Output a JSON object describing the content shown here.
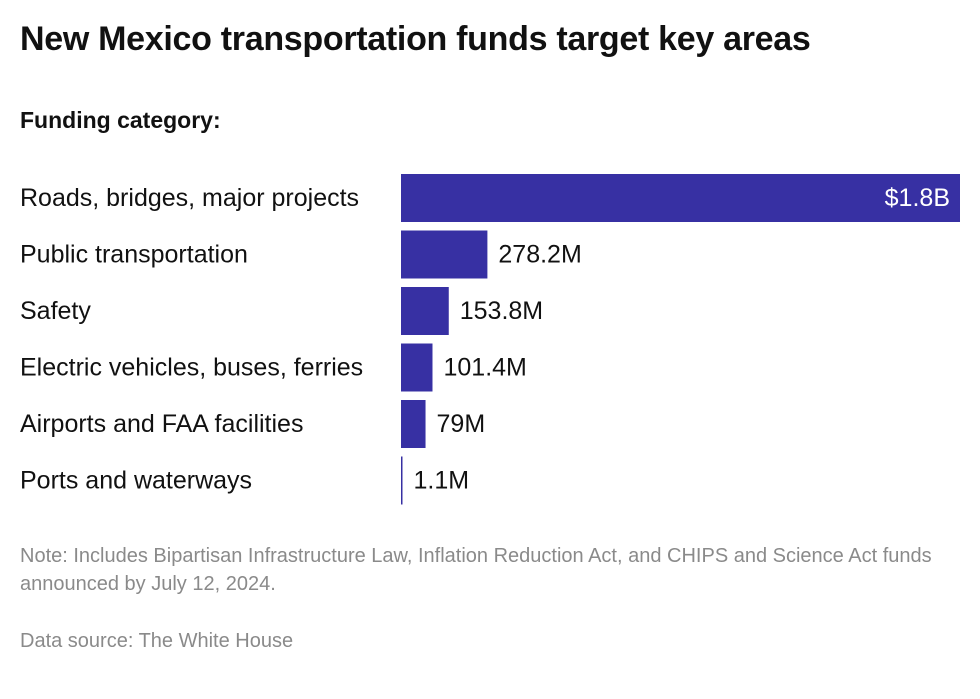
{
  "header": {
    "title": "New Mexico transportation funds target key areas",
    "subtitle": "Funding category:"
  },
  "footer": {
    "note": "Note: Includes Bipartisan Infrastructure Law, Inflation Reduction Act, and CHIPS and Science Act funds announced by July 12, 2024.",
    "source": "Data source: The White House"
  },
  "colors": {
    "bar": "#3730a3",
    "inside_label": "#ffffff",
    "outside_label": "#111111",
    "category_label": "#111111"
  },
  "chart_data": {
    "type": "bar",
    "orientation": "horizontal",
    "title": "New Mexico transportation funds target key areas",
    "categories": [
      "Roads, bridges, major projects",
      "Public transportation",
      "Safety",
      "Electric vehicles, buses, ferries",
      "Airports and FAA facilities",
      "Ports and waterways"
    ],
    "values": [
      1800,
      278.2,
      153.8,
      101.4,
      79,
      1.1
    ],
    "value_unit": "millions of dollars",
    "data_labels": [
      "$1.8B",
      "278.2M",
      "153.8M",
      "101.4M",
      "79M",
      "1.1M"
    ],
    "xlim": [
      0,
      1800
    ],
    "grid": false,
    "legend": "none"
  }
}
